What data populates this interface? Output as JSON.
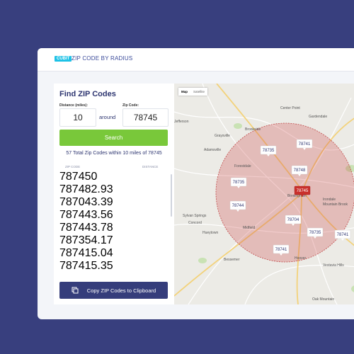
{
  "header": {
    "badge": "CUBIT",
    "title": "ZIP CODE BY RADIUS"
  },
  "form": {
    "title": "Find ZIP Codes",
    "distance_label": "Distance (miles):",
    "distance_value": "10",
    "around": "around",
    "zip_label": "Zip Code:",
    "zip_value": "78745",
    "search": "Search",
    "summary": "57 Total Zip Codes within 10 miles of 78745"
  },
  "table": {
    "headers": [
      "ZIP CODE",
      "DISTANCE"
    ],
    "rows": [
      [
        "78745",
        "0"
      ],
      [
        "78748",
        "2.93"
      ],
      [
        "78704",
        "3.39"
      ],
      [
        "78744",
        "3.56"
      ],
      [
        "78744",
        "3.78"
      ],
      [
        "78735",
        "4.17"
      ],
      [
        "78741",
        "5.04"
      ],
      [
        "78741",
        "5.35"
      ]
    ]
  },
  "copy_button": "Copy ZIP Codes to Clipboard",
  "map": {
    "toggle": [
      "Map",
      "Satellite"
    ],
    "markers": [
      "78741",
      "78735",
      "78748",
      "78735",
      "78745",
      "78744",
      "78704",
      "78735",
      "78741",
      "78741"
    ],
    "places": [
      "Gardendale",
      "Center Point",
      "Brookside",
      "Graysville",
      "Adamsville",
      "Forestdale",
      "Jefferson",
      "Birmingham",
      "Irondale",
      "Sylvan Springs",
      "Midfield",
      "Concord",
      "Hueytown",
      "Mountain Brook",
      "Vestavia Hills",
      "Bessemer",
      "Hoover",
      "Oak Mountain"
    ]
  }
}
